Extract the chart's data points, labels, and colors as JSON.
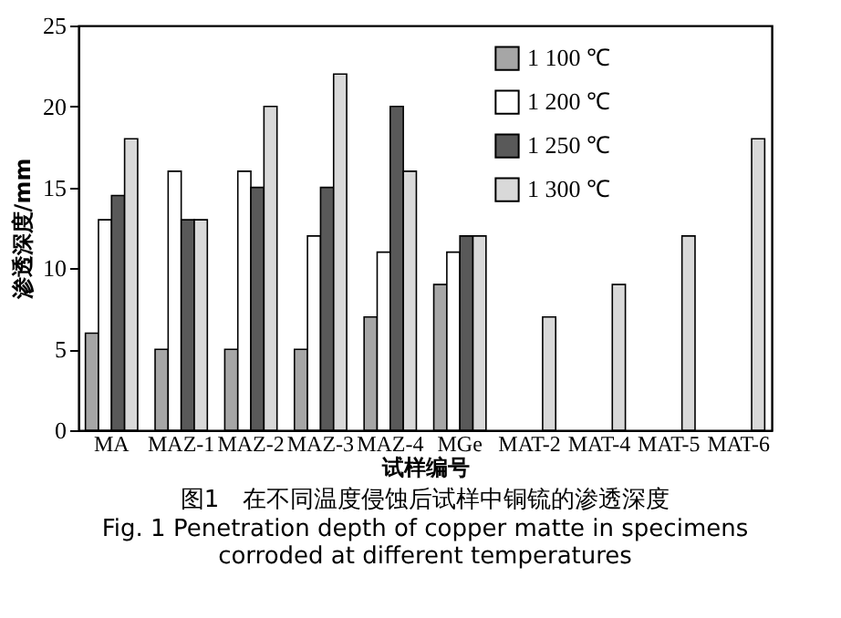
{
  "chart_data": {
    "type": "bar",
    "title": "图1　在不同温度侵蚀后试样中铜锍的渗透深度",
    "subtitle": "Fig. 1 Penetration depth of copper matte in specimens corroded at different temperatures",
    "xlabel": "试样编号",
    "ylabel": "渗透深度/mm",
    "categories": [
      "MA",
      "MAZ-1",
      "MAZ-2",
      "MAZ-3",
      "MAZ-4",
      "MGe",
      "MAT-2",
      "MAT-4",
      "MAT-5",
      "MAT-6"
    ],
    "series": [
      {
        "name": "1 100 ℃",
        "color": "#a6a6a6",
        "values": [
          6,
          5,
          5,
          5,
          7,
          9,
          null,
          null,
          null,
          null
        ]
      },
      {
        "name": "1 200 ℃",
        "color": "#ffffff",
        "values": [
          13,
          16,
          16,
          12,
          11,
          11,
          null,
          null,
          null,
          null
        ]
      },
      {
        "name": "1 250 ℃",
        "color": "#595959",
        "values": [
          14.5,
          13,
          15,
          15,
          20,
          12,
          null,
          null,
          null,
          null
        ]
      },
      {
        "name": "1 300 ℃",
        "color": "#d9d9d9",
        "values": [
          18,
          13,
          20,
          22,
          16,
          12,
          7,
          9,
          12,
          18
        ]
      }
    ],
    "ylim": [
      0,
      25
    ],
    "yticks": [
      0,
      5,
      10,
      15,
      20,
      25
    ],
    "grid": false,
    "legend": "top right"
  }
}
